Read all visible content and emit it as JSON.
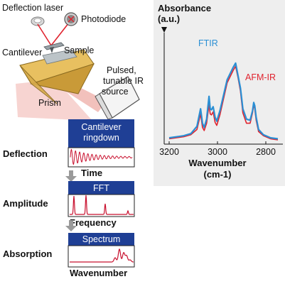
{
  "setup": {
    "labels": {
      "deflection_laser": "Deflection laser",
      "photodiode": "Photodiode",
      "cantilever": "Cantilever",
      "sample": "Sample",
      "prism": "Prism",
      "source_line1": "Pulsed,",
      "source_line2": "tunable IR",
      "source_line3": "source"
    }
  },
  "workflow": {
    "steps": [
      {
        "row_label": "Deflection",
        "panel_title_line1": "Cantilever",
        "panel_title_line2": "ringdown",
        "axis_label": "Time"
      },
      {
        "row_label": "Amplitude",
        "panel_title_line1": "FFT",
        "axis_label": "Frequency"
      },
      {
        "row_label": "Absorption",
        "panel_title_line1": "Spectrum",
        "axis_label": "Wavenumber"
      }
    ]
  },
  "spectrum_chart": {
    "y_title_line1": "Absorbance",
    "y_title_line2": "(a.u.)",
    "x_title_line1": "Wavenumber",
    "x_title_line2": "(cm-1)",
    "x_ticks": [
      "3200",
      "3000",
      "2800"
    ],
    "series_labels": {
      "ftir": "FTIR",
      "afmir": "AFM-IR"
    },
    "colors": {
      "ftir": "#2a8fd4",
      "afmir": "#e0232e",
      "panel_header": "#1f3f95",
      "trace_red": "#c8102e"
    }
  },
  "chart_data": {
    "type": "line",
    "xlabel": "Wavenumber (cm-1)",
    "ylabel": "Absorbance (a.u.)",
    "xlim": [
      3200,
      2750
    ],
    "ylim": [
      0,
      1
    ],
    "x_reversed": true,
    "series": [
      {
        "name": "FTIR",
        "color": "#2a8fd4",
        "x": [
          3200,
          3140,
          3110,
          3085,
          3070,
          3062,
          3055,
          3045,
          3035,
          3030,
          3025,
          3018,
          3010,
          3003,
          2990,
          2960,
          2935,
          2925,
          2915,
          2905,
          2895,
          2880,
          2865,
          2855,
          2850,
          2846,
          2840,
          2830,
          2810,
          2780,
          2750
        ],
        "values": [
          0.02,
          0.04,
          0.06,
          0.13,
          0.3,
          0.16,
          0.12,
          0.2,
          0.42,
          0.3,
          0.29,
          0.32,
          0.22,
          0.18,
          0.28,
          0.58,
          0.7,
          0.74,
          0.62,
          0.5,
          0.3,
          0.2,
          0.19,
          0.28,
          0.36,
          0.33,
          0.22,
          0.1,
          0.05,
          0.02,
          0.01
        ]
      },
      {
        "name": "AFM-IR",
        "color": "#e0232e",
        "x": [
          3200,
          3140,
          3110,
          3085,
          3070,
          3062,
          3055,
          3045,
          3035,
          3030,
          3025,
          3018,
          3010,
          3003,
          2990,
          2960,
          2935,
          2925,
          2915,
          2905,
          2895,
          2880,
          2865,
          2855,
          2850,
          2846,
          2840,
          2830,
          2810,
          2780,
          2750
        ],
        "values": [
          0.01,
          0.03,
          0.05,
          0.1,
          0.25,
          0.12,
          0.09,
          0.16,
          0.34,
          0.25,
          0.24,
          0.27,
          0.17,
          0.14,
          0.24,
          0.55,
          0.67,
          0.71,
          0.6,
          0.47,
          0.26,
          0.16,
          0.16,
          0.26,
          0.34,
          0.3,
          0.19,
          0.08,
          0.04,
          0.01,
          0.0
        ]
      }
    ]
  }
}
